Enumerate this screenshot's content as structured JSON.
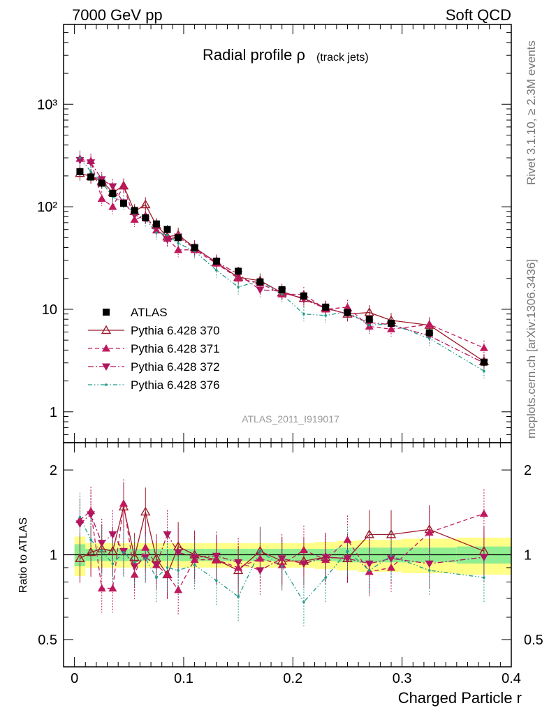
{
  "header": {
    "energy_label": "7000 GeV pp",
    "process_label": "Soft QCD",
    "side_rivet": "Rivet 3.1.10, ≥ 2.3M events",
    "side_mcplots": "mcplots.cern.ch [arXiv:1306.3436]"
  },
  "chart_data": [
    {
      "type": "line",
      "title": "Radial profile ρ",
      "title_suffix": "(track jets)",
      "analysis_tag": "ATLAS_2011_I919017",
      "xlabel": "Charged Particle r",
      "ylabel": "",
      "yscale": "log",
      "xlim": [
        -0.01,
        0.4
      ],
      "ylim": [
        0.5,
        6000
      ],
      "ytick_labels": [
        "1",
        "10",
        "10²",
        "10³"
      ],
      "legend_position": "lower-left",
      "x": [
        0.005,
        0.015,
        0.025,
        0.035,
        0.045,
        0.055,
        0.065,
        0.075,
        0.085,
        0.095,
        0.11,
        0.13,
        0.15,
        0.17,
        0.19,
        0.21,
        0.23,
        0.25,
        0.27,
        0.29,
        0.325,
        0.375
      ],
      "data": {
        "name": "ATLAS",
        "color": "#000000",
        "values": [
          220,
          195,
          170,
          135,
          108,
          92,
          78,
          68,
          60,
          50,
          40,
          29.5,
          23.5,
          18.5,
          15.5,
          13.5,
          10.5,
          9.3,
          8.0,
          7.3,
          5.9,
          3.05
        ]
      },
      "series": [
        {
          "name": "Pythia 6.428 370",
          "color": "#9c1b2a",
          "style": "solid",
          "marker": "open-triangle-up",
          "values": [
            212,
            198,
            178,
            138,
            160,
            90,
            105,
            66,
            51,
            53,
            40,
            28.5,
            20.5,
            19.0,
            14.5,
            12.8,
            10.3,
            9.0,
            9.3,
            7.8,
            7.0,
            3.1
          ]
        },
        {
          "name": "Pythia 6.428 371",
          "color": "#c0185d",
          "style": "dashed",
          "marker": "filled-triangle-up",
          "values": [
            295,
            280,
            120,
            100,
            160,
            75,
            82,
            59,
            49,
            38,
            38,
            28.0,
            20.0,
            18.0,
            14.0,
            14.0,
            10.0,
            10.5,
            6.8,
            6.4,
            7.1,
            4.2
          ]
        },
        {
          "name": "Pythia 6.428 372",
          "color": "#b01660",
          "style": "dashdot",
          "marker": "filled-triangle-down",
          "values": [
            285,
            270,
            185,
            158,
            110,
            83,
            76,
            62,
            48,
            51,
            39,
            29.0,
            22.0,
            15.5,
            15.0,
            12.5,
            10.2,
            9.0,
            7.4,
            7.1,
            5.5,
            3.0
          ]
        },
        {
          "name": "Pythia 6.428 376",
          "color": "#1f9a8a",
          "style": "dashdotdot",
          "marker": "small-dot",
          "values": [
            300,
            220,
            175,
            125,
            110,
            86,
            76,
            56,
            53,
            44,
            37,
            24.0,
            16.5,
            19.0,
            14.0,
            9.0,
            8.7,
            9.5,
            7.0,
            7.2,
            5.2,
            2.5
          ]
        }
      ]
    },
    {
      "type": "line",
      "title": "",
      "xlabel": "Charged Particle r",
      "ylabel": "Ratio to ATLAS",
      "yscale": "log",
      "xlim": [
        -0.01,
        0.4
      ],
      "ylim": [
        0.4,
        2.5
      ],
      "ytick_labels": [
        "0.5",
        "1",
        "2"
      ],
      "xtick_labels": [
        "0",
        "0.1",
        "0.2",
        "0.3",
        "0.4"
      ],
      "band_inner_color": "#90ee90",
      "band_outer_color": "#ffff88",
      "band_inner_halfwidth": [
        0.09,
        0.05,
        0.05,
        0.05,
        0.05,
        0.05,
        0.05,
        0.05,
        0.05,
        0.05,
        0.05,
        0.05,
        0.05,
        0.05,
        0.05,
        0.05,
        0.05,
        0.06,
        0.06,
        0.06,
        0.06,
        0.07
      ],
      "band_outer_halfwidth": [
        0.16,
        0.1,
        0.1,
        0.1,
        0.1,
        0.1,
        0.1,
        0.1,
        0.1,
        0.1,
        0.1,
        0.1,
        0.1,
        0.1,
        0.1,
        0.1,
        0.11,
        0.12,
        0.13,
        0.13,
        0.14,
        0.15
      ],
      "series": [
        {
          "name": "Pythia 6.428 370",
          "color": "#9c1b2a",
          "style": "solid",
          "marker": "open-triangle-up",
          "values": [
            0.97,
            1.02,
            1.05,
            1.03,
            1.48,
            0.98,
            1.42,
            0.97,
            0.85,
            1.07,
            1.0,
            0.96,
            0.88,
            1.03,
            0.95,
            0.95,
            0.98,
            0.97,
            1.18,
            1.18,
            1.23,
            1.03
          ]
        },
        {
          "name": "Pythia 6.428 371",
          "color": "#c0185d",
          "style": "dashed",
          "marker": "filled-triangle-up",
          "values": [
            1.33,
            1.43,
            0.76,
            0.76,
            1.52,
            0.85,
            1.06,
            0.92,
            0.85,
            0.75,
            0.96,
            0.96,
            0.9,
            0.97,
            0.92,
            1.04,
            0.96,
            1.13,
            0.87,
            0.9,
            1.2,
            1.4
          ]
        },
        {
          "name": "Pythia 6.428 372",
          "color": "#b01660",
          "style": "dashdot",
          "marker": "filled-triangle-down",
          "values": [
            1.29,
            1.39,
            1.1,
            1.18,
            1.03,
            0.91,
            0.98,
            0.92,
            1.18,
            1.02,
            0.98,
            0.99,
            0.94,
            0.88,
            0.97,
            0.93,
            0.98,
            0.97,
            0.93,
            0.97,
            0.93,
            0.98
          ]
        },
        {
          "name": "Pythia 6.428 376",
          "color": "#1f9a8a",
          "style": "dashdotdot",
          "marker": "small-dot",
          "values": [
            1.36,
            1.13,
            1.03,
            0.93,
            1.02,
            0.94,
            0.97,
            0.83,
            0.9,
            0.88,
            0.92,
            0.81,
            0.71,
            1.03,
            0.91,
            0.68,
            0.83,
            1.03,
            0.88,
            0.99,
            0.88,
            0.83
          ]
        }
      ]
    }
  ]
}
